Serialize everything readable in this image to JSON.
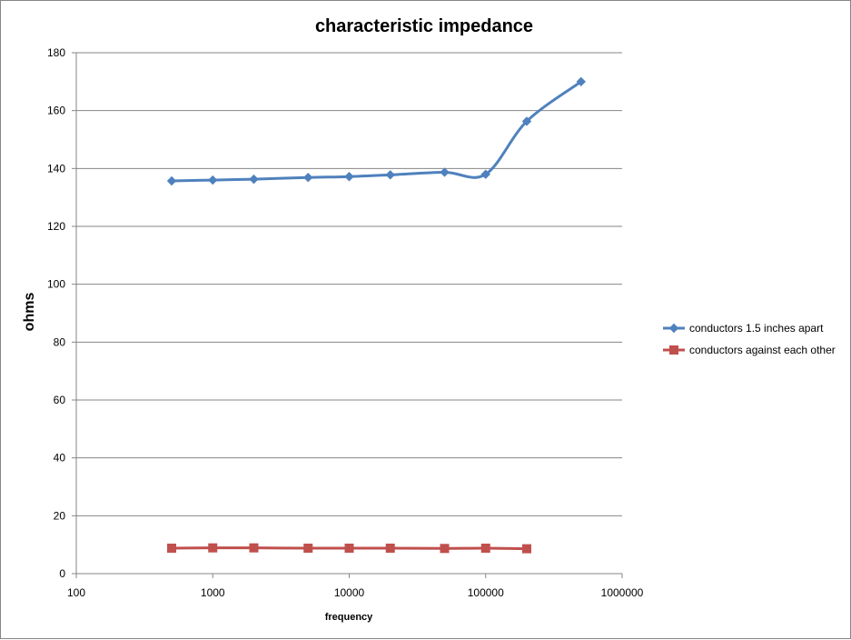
{
  "chart_data": {
    "type": "line",
    "title": "characteristic impedance",
    "xlabel": "frequency",
    "ylabel": "ohms",
    "xscale": "log",
    "xlim": [
      100,
      1000000
    ],
    "ylim": [
      0,
      180
    ],
    "xticks": [
      "100",
      "1000",
      "10000",
      "100000",
      "1000000"
    ],
    "yticks": [
      "0",
      "20",
      "40",
      "60",
      "80",
      "100",
      "120",
      "140",
      "160",
      "180"
    ],
    "grid": "horizontal major gridlines",
    "legend_position": "right",
    "series": [
      {
        "name": "conductors 1.5 inches apart",
        "color": "#4F81BD",
        "marker": "diamond",
        "smooth": true,
        "x": [
          500,
          1000,
          2000,
          5000,
          10000,
          20000,
          50000,
          100000,
          200000,
          500000
        ],
        "y": [
          135.7,
          136.0,
          136.3,
          136.9,
          137.2,
          137.8,
          138.7,
          138.0,
          156.3,
          170.0
        ]
      },
      {
        "name": "conductors against  each other",
        "color": "#C0504D",
        "marker": "square",
        "smooth": true,
        "x": [
          500,
          1000,
          2000,
          5000,
          10000,
          20000,
          50000,
          100000,
          200000
        ],
        "y": [
          8.8,
          8.9,
          8.9,
          8.8,
          8.8,
          8.8,
          8.7,
          8.8,
          8.6
        ]
      }
    ]
  }
}
